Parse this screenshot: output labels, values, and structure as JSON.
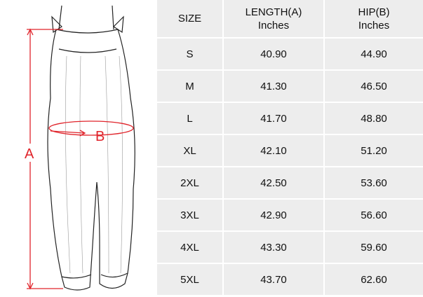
{
  "illustration": {
    "label_a": "A",
    "label_b": "B",
    "accent_color": "#e0242b"
  },
  "table": {
    "headers": [
      {
        "line1": "SIZE",
        "line2": ""
      },
      {
        "line1": "LENGTH(A)",
        "line2": "Inches"
      },
      {
        "line1": "HIP(B)",
        "line2": "Inches"
      }
    ],
    "rows": [
      [
        "S",
        "40.90",
        "44.90"
      ],
      [
        "M",
        "41.30",
        "46.50"
      ],
      [
        "L",
        "41.70",
        "48.80"
      ],
      [
        "XL",
        "42.10",
        "51.20"
      ],
      [
        "2XL",
        "42.50",
        "53.60"
      ],
      [
        "3XL",
        "42.90",
        "56.60"
      ],
      [
        "4XL",
        "43.30",
        "59.60"
      ],
      [
        "5XL",
        "43.70",
        "62.60"
      ]
    ]
  }
}
